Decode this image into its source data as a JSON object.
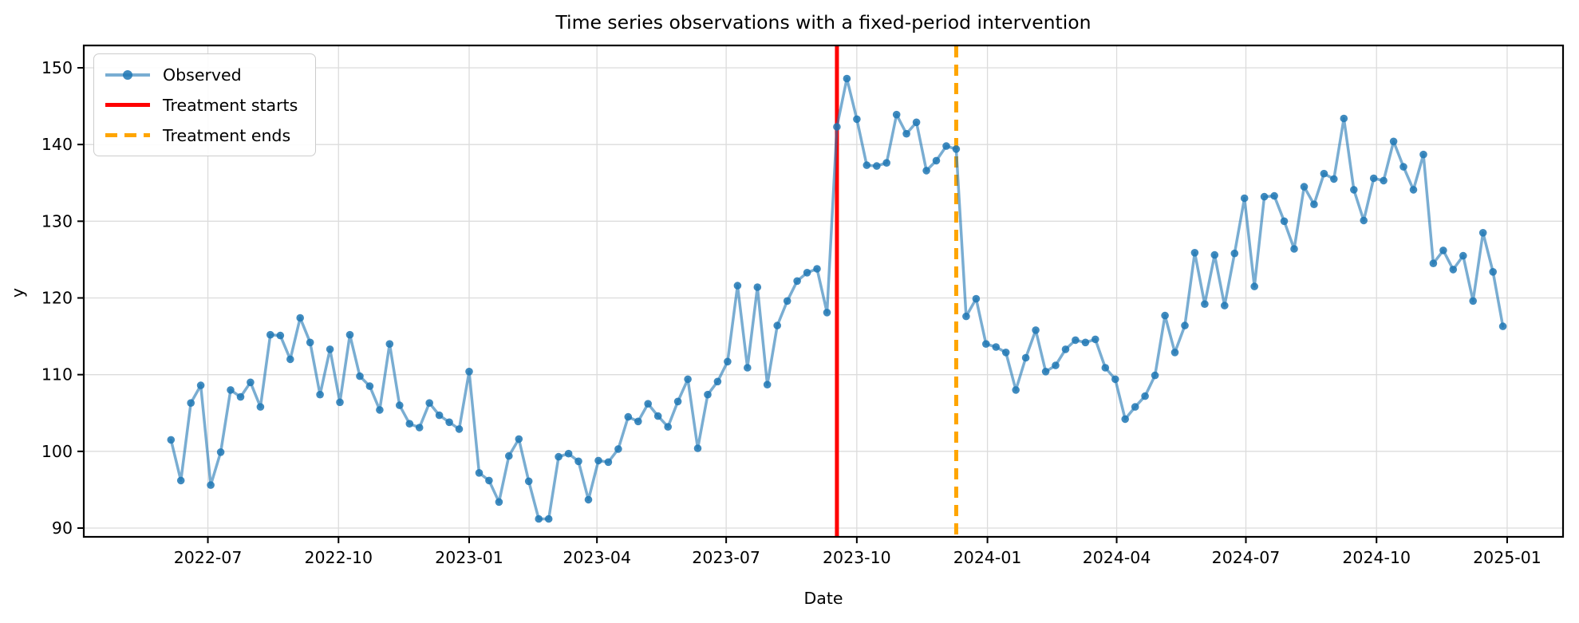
{
  "chart_data": {
    "type": "line",
    "title": "Time series observations with a fixed-period intervention",
    "xlabel": "Date",
    "ylabel": "y",
    "grid": true,
    "legend_position": "upper left",
    "frequency": "weekly",
    "start_date": "2022-06-05",
    "end_date": "2024-12-29",
    "x_ticks": {
      "labels": [
        "2022-07",
        "2022-10",
        "2023-01",
        "2023-04",
        "2023-07",
        "2023-10",
        "2024-01",
        "2024-04",
        "2024-07",
        "2024-10",
        "2025-01"
      ],
      "day_offsets_from_2023_01_01": [
        -184,
        -92,
        0,
        90,
        181,
        273,
        365,
        456,
        547,
        639,
        731
      ]
    },
    "y_ticks": [
      90,
      100,
      110,
      120,
      130,
      140,
      150
    ],
    "ylim": [
      88.9,
      152.9
    ],
    "series": [
      {
        "name": "Observed",
        "color": "#1f77b4",
        "alpha": 0.65,
        "marker": "o",
        "first_point_day_offset": -210,
        "step_days": 7,
        "values": [
          101.5,
          96.2,
          106.3,
          108.6,
          95.6,
          99.9,
          108.0,
          107.1,
          109.0,
          105.8,
          115.2,
          115.1,
          112.0,
          117.4,
          114.2,
          107.4,
          113.3,
          106.4,
          115.2,
          109.8,
          108.5,
          105.4,
          114.0,
          106.0,
          103.6,
          103.1,
          106.3,
          104.7,
          103.8,
          102.9,
          110.4,
          97.2,
          96.2,
          93.4,
          99.4,
          101.6,
          96.1,
          91.2,
          91.2,
          99.3,
          99.7,
          98.7,
          93.7,
          98.8,
          98.6,
          100.3,
          104.5,
          103.9,
          106.2,
          104.6,
          103.2,
          106.5,
          109.4,
          100.4,
          107.4,
          109.1,
          111.7,
          121.6,
          110.9,
          121.4,
          108.7,
          116.4,
          119.6,
          122.2,
          123.3,
          123.8,
          118.1,
          142.3,
          148.6,
          143.3,
          137.3,
          137.2,
          137.6,
          143.9,
          141.4,
          142.9,
          136.6,
          137.9,
          139.8,
          139.4,
          117.6,
          119.9,
          114.0,
          113.6,
          112.9,
          108.0,
          112.2,
          115.8,
          110.4,
          111.2,
          113.3,
          114.5,
          114.2,
          114.6,
          110.9,
          109.4,
          104.2,
          105.8,
          107.2,
          109.9,
          117.7,
          112.9,
          116.4,
          125.9,
          119.2,
          125.6,
          119.0,
          125.8,
          133.0,
          121.5,
          133.2,
          133.3,
          130.0,
          126.4,
          134.5,
          132.2,
          136.2,
          135.5,
          143.4,
          134.1,
          130.1,
          135.6,
          135.3,
          140.4,
          137.1,
          134.1,
          138.7,
          124.5,
          126.2,
          123.7,
          125.5,
          119.6,
          128.5,
          123.4,
          116.3
        ]
      }
    ],
    "vlines": [
      {
        "label": "Treatment starts",
        "date": "2023-09-17",
        "day_offset_from_2023_01_01": 259,
        "color": "#ff0000",
        "style": "solid",
        "width": 5
      },
      {
        "label": "Treatment ends",
        "date": "2023-12-10",
        "day_offset_from_2023_01_01": 343,
        "color": "#ffa500",
        "style": "dashed",
        "width": 5
      }
    ],
    "colors": {
      "observed_line": "#1f77b4",
      "treatment_start_line": "#ff0000",
      "treatment_end_line": "#ffa500",
      "grid_line": "#dcdcdc",
      "axes_spine": "#000000",
      "background": "#ffffff"
    }
  }
}
